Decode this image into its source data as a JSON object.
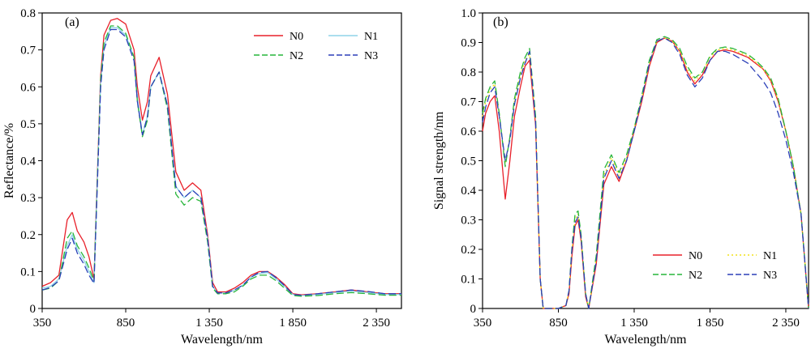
{
  "chart_data": [
    {
      "type": "line",
      "panel_label": "(a)",
      "xlabel": "Wavelength/nm",
      "ylabel": "Reflectance/%",
      "xlim": [
        350,
        2500
      ],
      "ylim": [
        0,
        0.8
      ],
      "x_ticks": [
        350,
        850,
        1350,
        1850,
        2350
      ],
      "x_tick_labels": [
        "350",
        "850",
        "1 350",
        "1 850",
        "2 350"
      ],
      "y_ticks": [
        0,
        0.1,
        0.2,
        0.3,
        0.4,
        0.5,
        0.6,
        0.7,
        0.8
      ],
      "y_tick_labels": [
        "0",
        "0.1",
        "0.2",
        "0.3",
        "0.4",
        "0.5",
        "0.6",
        "0.7",
        "0.8"
      ],
      "legend_position": "top-right",
      "legend_columns": 2,
      "grid": false,
      "series": [
        {
          "name": "N0",
          "color": "#e8202a",
          "dash": "solid",
          "x": [
            350,
            400,
            450,
            500,
            530,
            560,
            600,
            630,
            660,
            700,
            720,
            760,
            800,
            850,
            900,
            920,
            950,
            980,
            1000,
            1050,
            1100,
            1150,
            1200,
            1250,
            1300,
            1340,
            1370,
            1400,
            1450,
            1500,
            1550,
            1600,
            1650,
            1700,
            1750,
            1800,
            1850,
            1900,
            2000,
            2100,
            2200,
            2300,
            2400,
            2500
          ],
          "y": [
            0.06,
            0.07,
            0.09,
            0.24,
            0.26,
            0.21,
            0.18,
            0.14,
            0.08,
            0.63,
            0.74,
            0.78,
            0.785,
            0.77,
            0.7,
            0.6,
            0.51,
            0.56,
            0.63,
            0.68,
            0.58,
            0.37,
            0.32,
            0.34,
            0.32,
            0.2,
            0.07,
            0.045,
            0.045,
            0.055,
            0.07,
            0.09,
            0.1,
            0.1,
            0.085,
            0.065,
            0.04,
            0.037,
            0.04,
            0.045,
            0.05,
            0.045,
            0.04,
            0.04
          ]
        },
        {
          "name": "N1",
          "color": "#8fd3e8",
          "dash": "solid",
          "x": [
            350,
            400,
            450,
            500,
            530,
            560,
            600,
            630,
            660,
            700,
            720,
            760,
            800,
            850,
            900,
            920,
            950,
            980,
            1000,
            1050,
            1100,
            1150,
            1200,
            1250,
            1300,
            1340,
            1370,
            1400,
            1450,
            1500,
            1550,
            1600,
            1650,
            1700,
            1750,
            1800,
            1850,
            1900,
            2000,
            2100,
            2200,
            2300,
            2400,
            2500
          ],
          "y": [
            0.055,
            0.06,
            0.08,
            0.17,
            0.2,
            0.16,
            0.13,
            0.1,
            0.07,
            0.61,
            0.71,
            0.76,
            0.76,
            0.74,
            0.68,
            0.57,
            0.47,
            0.52,
            0.6,
            0.64,
            0.55,
            0.33,
            0.3,
            0.32,
            0.3,
            0.19,
            0.06,
            0.042,
            0.042,
            0.05,
            0.063,
            0.085,
            0.095,
            0.097,
            0.08,
            0.06,
            0.038,
            0.035,
            0.038,
            0.043,
            0.047,
            0.043,
            0.038,
            0.038
          ]
        },
        {
          "name": "N2",
          "color": "#27b53a",
          "dash": "dashed",
          "x": [
            350,
            400,
            450,
            500,
            530,
            560,
            600,
            630,
            660,
            700,
            720,
            760,
            800,
            850,
            900,
            920,
            950,
            980,
            1000,
            1050,
            1100,
            1150,
            1200,
            1250,
            1300,
            1340,
            1370,
            1400,
            1450,
            1500,
            1550,
            1600,
            1650,
            1700,
            1750,
            1800,
            1850,
            1900,
            2000,
            2100,
            2200,
            2300,
            2400,
            2500
          ],
          "y": [
            0.05,
            0.055,
            0.075,
            0.19,
            0.21,
            0.17,
            0.14,
            0.11,
            0.075,
            0.62,
            0.72,
            0.765,
            0.765,
            0.745,
            0.68,
            0.56,
            0.465,
            0.51,
            0.6,
            0.64,
            0.54,
            0.31,
            0.28,
            0.3,
            0.29,
            0.18,
            0.055,
            0.04,
            0.04,
            0.045,
            0.06,
            0.08,
            0.09,
            0.09,
            0.075,
            0.055,
            0.035,
            0.033,
            0.035,
            0.04,
            0.043,
            0.04,
            0.036,
            0.036
          ]
        },
        {
          "name": "N3",
          "color": "#2b3fb8",
          "dash": "dashed",
          "x": [
            350,
            400,
            450,
            500,
            530,
            560,
            600,
            630,
            660,
            700,
            720,
            760,
            800,
            850,
            900,
            920,
            950,
            980,
            1000,
            1050,
            1100,
            1150,
            1200,
            1250,
            1300,
            1340,
            1370,
            1400,
            1450,
            1500,
            1550,
            1600,
            1650,
            1700,
            1750,
            1800,
            1850,
            1900,
            2000,
            2100,
            2200,
            2300,
            2400,
            2500
          ],
          "y": [
            0.05,
            0.057,
            0.075,
            0.16,
            0.19,
            0.15,
            0.12,
            0.09,
            0.068,
            0.6,
            0.7,
            0.755,
            0.755,
            0.735,
            0.67,
            0.56,
            0.47,
            0.52,
            0.6,
            0.64,
            0.55,
            0.33,
            0.3,
            0.32,
            0.3,
            0.19,
            0.06,
            0.042,
            0.042,
            0.05,
            0.063,
            0.085,
            0.098,
            0.1,
            0.083,
            0.062,
            0.038,
            0.036,
            0.04,
            0.045,
            0.05,
            0.046,
            0.04,
            0.04
          ]
        }
      ]
    },
    {
      "type": "line",
      "panel_label": "(b)",
      "xlabel": "Wavelength/nm",
      "ylabel": "Signal strength/nm",
      "xlim": [
        350,
        2500
      ],
      "ylim": [
        0,
        1.0
      ],
      "x_ticks": [
        350,
        850,
        1350,
        1850,
        2350
      ],
      "x_tick_labels": [
        "350",
        "850",
        "1 350",
        "1 850",
        "2 350"
      ],
      "y_ticks": [
        0,
        0.1,
        0.2,
        0.3,
        0.4,
        0.5,
        0.6,
        0.7,
        0.8,
        0.9,
        1.0
      ],
      "y_tick_labels": [
        "0",
        "0.1",
        "0.2",
        "0.3",
        "0.4",
        "0.5",
        "0.6",
        "0.7",
        "0.8",
        "0.9",
        "1.0"
      ],
      "legend_position": "bottom-right",
      "legend_columns": 2,
      "grid": false,
      "series": [
        {
          "name": "N0",
          "color": "#e8202a",
          "dash": "solid",
          "x": [
            350,
            370,
            400,
            430,
            460,
            500,
            530,
            560,
            600,
            630,
            660,
            700,
            730,
            750,
            780,
            800,
            850,
            900,
            920,
            940,
            960,
            980,
            1000,
            1030,
            1050,
            1100,
            1150,
            1200,
            1250,
            1300,
            1350,
            1400,
            1450,
            1500,
            1550,
            1600,
            1650,
            1700,
            1750,
            1800,
            1850,
            1900,
            1950,
            2000,
            2050,
            2100,
            2150,
            2200,
            2250,
            2300,
            2350,
            2400,
            2450,
            2500
          ],
          "y": [
            0.6,
            0.66,
            0.7,
            0.72,
            0.6,
            0.37,
            0.5,
            0.65,
            0.75,
            0.82,
            0.84,
            0.62,
            0.1,
            0.0,
            0.0,
            0.0,
            0.0,
            0.01,
            0.05,
            0.18,
            0.28,
            0.3,
            0.23,
            0.04,
            0.0,
            0.15,
            0.42,
            0.48,
            0.43,
            0.5,
            0.6,
            0.7,
            0.82,
            0.9,
            0.915,
            0.905,
            0.87,
            0.8,
            0.76,
            0.79,
            0.84,
            0.87,
            0.875,
            0.87,
            0.86,
            0.85,
            0.83,
            0.81,
            0.77,
            0.7,
            0.6,
            0.48,
            0.32,
            0.0
          ]
        },
        {
          "name": "N1",
          "color": "#f2e21a",
          "dash": "dotted",
          "x": [
            350,
            370,
            400,
            430,
            460,
            500,
            530,
            560,
            600,
            630,
            660,
            700,
            730,
            750,
            780,
            800,
            850,
            900,
            920,
            940,
            960,
            980,
            1000,
            1030,
            1050,
            1100,
            1150,
            1200,
            1250,
            1300,
            1350,
            1400,
            1450,
            1500,
            1550,
            1600,
            1650,
            1700,
            1750,
            1800,
            1850,
            1900,
            1950,
            2000,
            2050,
            2100,
            2150,
            2200,
            2250,
            2300,
            2350,
            2400,
            2450,
            2500
          ],
          "y": [
            0.65,
            0.7,
            0.74,
            0.76,
            0.66,
            0.49,
            0.58,
            0.7,
            0.79,
            0.84,
            0.86,
            0.64,
            0.1,
            0.0,
            0.0,
            0.0,
            0.0,
            0.01,
            0.06,
            0.2,
            0.3,
            0.32,
            0.24,
            0.05,
            0.0,
            0.17,
            0.45,
            0.51,
            0.45,
            0.51,
            0.61,
            0.71,
            0.83,
            0.905,
            0.915,
            0.905,
            0.87,
            0.81,
            0.77,
            0.8,
            0.85,
            0.875,
            0.88,
            0.875,
            0.865,
            0.855,
            0.835,
            0.81,
            0.775,
            0.705,
            0.6,
            0.48,
            0.32,
            0.0
          ]
        },
        {
          "name": "N2",
          "color": "#27b53a",
          "dash": "dashed",
          "x": [
            350,
            370,
            400,
            430,
            460,
            500,
            530,
            560,
            600,
            630,
            660,
            700,
            730,
            750,
            780,
            800,
            850,
            900,
            920,
            940,
            960,
            980,
            1000,
            1030,
            1050,
            1100,
            1150,
            1200,
            1250,
            1300,
            1350,
            1400,
            1450,
            1500,
            1550,
            1600,
            1650,
            1700,
            1750,
            1800,
            1850,
            1900,
            1950,
            2000,
            2050,
            2100,
            2150,
            2200,
            2250,
            2300,
            2350,
            2400,
            2450,
            2500
          ],
          "y": [
            0.66,
            0.71,
            0.75,
            0.77,
            0.66,
            0.48,
            0.58,
            0.71,
            0.8,
            0.85,
            0.88,
            0.65,
            0.1,
            0.0,
            0.0,
            0.0,
            0.0,
            0.01,
            0.06,
            0.21,
            0.32,
            0.33,
            0.25,
            0.05,
            0.0,
            0.18,
            0.47,
            0.52,
            0.46,
            0.52,
            0.61,
            0.72,
            0.84,
            0.91,
            0.92,
            0.91,
            0.88,
            0.82,
            0.78,
            0.8,
            0.855,
            0.88,
            0.885,
            0.88,
            0.87,
            0.86,
            0.84,
            0.815,
            0.78,
            0.71,
            0.6,
            0.48,
            0.32,
            0.0
          ]
        },
        {
          "name": "N3",
          "color": "#2b3fb8",
          "dash": "dashed",
          "x": [
            350,
            370,
            400,
            430,
            460,
            500,
            530,
            560,
            600,
            630,
            660,
            700,
            730,
            750,
            780,
            800,
            850,
            900,
            920,
            940,
            960,
            980,
            1000,
            1030,
            1050,
            1100,
            1150,
            1200,
            1250,
            1300,
            1350,
            1400,
            1450,
            1500,
            1550,
            1600,
            1650,
            1700,
            1750,
            1800,
            1850,
            1900,
            1950,
            2000,
            2050,
            2100,
            2150,
            2200,
            2250,
            2300,
            2350,
            2400,
            2450,
            2500
          ],
          "y": [
            0.63,
            0.68,
            0.73,
            0.75,
            0.65,
            0.5,
            0.57,
            0.69,
            0.78,
            0.83,
            0.87,
            0.63,
            0.1,
            0.0,
            0.0,
            0.0,
            0.0,
            0.01,
            0.06,
            0.2,
            0.29,
            0.31,
            0.24,
            0.05,
            0.0,
            0.16,
            0.44,
            0.5,
            0.44,
            0.5,
            0.6,
            0.71,
            0.83,
            0.905,
            0.915,
            0.9,
            0.86,
            0.79,
            0.75,
            0.78,
            0.84,
            0.87,
            0.87,
            0.86,
            0.845,
            0.83,
            0.8,
            0.77,
            0.73,
            0.66,
            0.57,
            0.46,
            0.32,
            0.0
          ]
        }
      ]
    }
  ]
}
